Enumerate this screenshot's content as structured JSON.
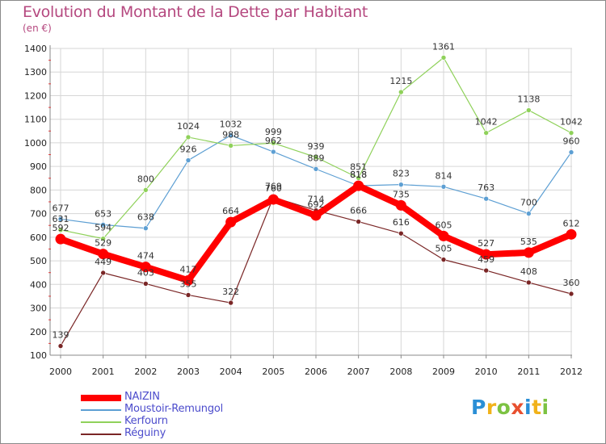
{
  "header": {
    "title": "Evolution du Montant de la Dette par Habitant",
    "subtitle": "(en €)"
  },
  "logo": {
    "text": "Proxiti",
    "letters": [
      {
        "ch": "P",
        "color": "#2b8fd6"
      },
      {
        "ch": "r",
        "color": "#f1b21a"
      },
      {
        "ch": "o",
        "color": "#7cc242"
      },
      {
        "ch": "x",
        "color": "#e8502f"
      },
      {
        "ch": "i",
        "color": "#2b8fd6"
      },
      {
        "ch": "t",
        "color": "#f1b21a"
      },
      {
        "ch": "i",
        "color": "#7cc242"
      }
    ]
  },
  "chart_data": {
    "type": "line",
    "title": "Evolution du Montant de la Dette par Habitant",
    "subtitle": "(en €)",
    "x": [
      "2000",
      "2001",
      "2002",
      "2003",
      "2004",
      "2005",
      "2006",
      "2007",
      "2008",
      "2009",
      "2010",
      "2011",
      "2012"
    ],
    "ylim": [
      100,
      1400
    ],
    "yticks": [
      100,
      200,
      300,
      400,
      500,
      600,
      700,
      800,
      900,
      1000,
      1100,
      1200,
      1300,
      1400
    ],
    "grid": true,
    "legend_position": "bottom-left",
    "series": [
      {
        "name": "NAIZIN",
        "color": "#ff0000",
        "width": 8,
        "values": [
          592,
          529,
          474,
          417,
          664,
          760,
          692,
          818,
          735,
          605,
          527,
          535,
          612
        ]
      },
      {
        "name": "Moustoir-Remungol",
        "color": "#5d9fd3",
        "width": 1.2,
        "values": [
          677,
          653,
          638,
          926,
          1032,
          962,
          889,
          818,
          823,
          814,
          763,
          700,
          960
        ]
      },
      {
        "name": "Kerfourn",
        "color": "#8fd15a",
        "width": 1.2,
        "values": [
          631,
          594,
          800,
          1024,
          988,
          999,
          939,
          851,
          1215,
          1361,
          1042,
          1138,
          1042
        ]
      },
      {
        "name": "Réguiny",
        "color": "#7a2626",
        "width": 1.2,
        "values": [
          139,
          449,
          403,
          355,
          322,
          769,
          714,
          666,
          616,
          505,
          459,
          408,
          360
        ]
      }
    ]
  }
}
